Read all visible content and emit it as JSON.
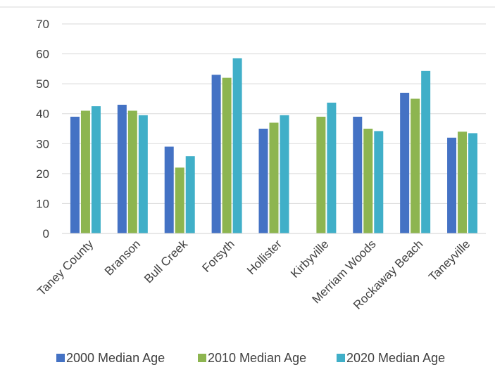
{
  "chart_data": {
    "type": "bar",
    "title": "",
    "xlabel": "",
    "ylabel": "",
    "ylim": [
      0,
      70
    ],
    "yticks": [
      0,
      10,
      20,
      30,
      40,
      50,
      60,
      70
    ],
    "grid": true,
    "legend_position": "bottom",
    "categories": [
      "Taney County",
      "Branson",
      "Bull Creek",
      "Forsyth",
      "Hollister",
      "Kirbyville",
      "Merriam Woods",
      "Rockaway Beach",
      "Taneyville"
    ],
    "series": [
      {
        "name": "2000 Median Age",
        "color": "#4472C4",
        "values": [
          39,
          43,
          29,
          53,
          35,
          null,
          39,
          47,
          32
        ]
      },
      {
        "name": "2010 Median Age",
        "color": "#8DB550",
        "values": [
          41,
          41,
          22,
          52,
          37,
          39,
          35,
          45,
          34
        ]
      },
      {
        "name": "2020 Median Age",
        "color": "#40AFC8",
        "values": [
          42.5,
          39.5,
          25.8,
          58.5,
          39.5,
          43.7,
          34.2,
          54.3,
          33.5
        ]
      }
    ]
  }
}
